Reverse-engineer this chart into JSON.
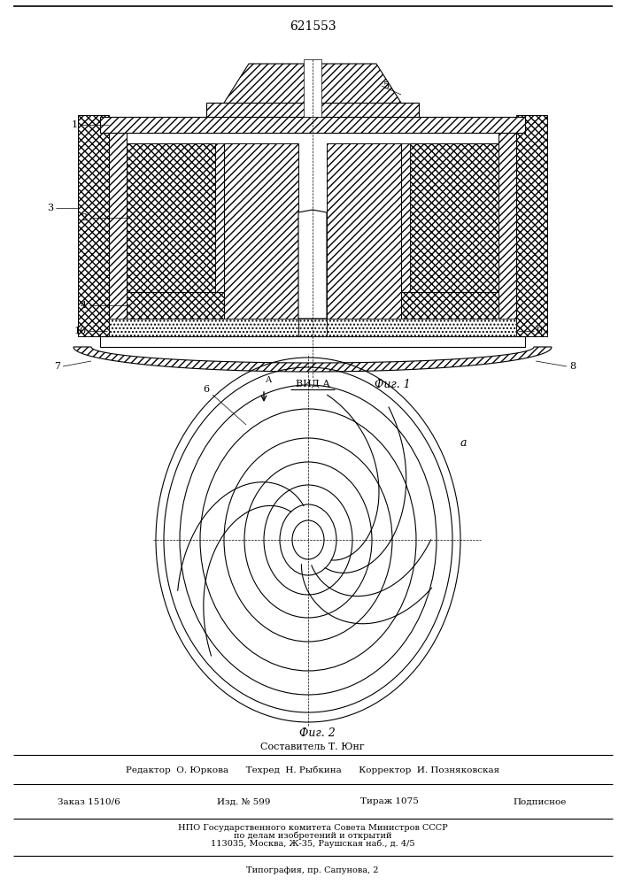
{
  "patent_number": "621553",
  "background_color": "#ffffff",
  "line_color": "#000000",
  "fig1_label": "Фиг. 1",
  "fig2_label": "Фиг. 2",
  "vida_label": "ВИД А",
  "composer": "Составитель Т. Юнг",
  "editor": "Редактор  О. Юркова",
  "tehred": "Техред  Н. Рыбкина",
  "korrektor": "Корректор  И. Позняковская",
  "zakaz": "Заказ 1510/6",
  "izd": "Изд. № 599",
  "tirazh": "Тираж 1075",
  "podpisnoe": "Подписное",
  "npo_line": "НПО Государственного комитета Совета Министров СССР",
  "npo_line2": "по делам изобретений и открытий",
  "npo_line3": "113035, Москва, Ж-35, Раушская наб., д. 4/5",
  "print_line": "Типография, пр. Сапунова, 2",
  "alpha_label": "a"
}
